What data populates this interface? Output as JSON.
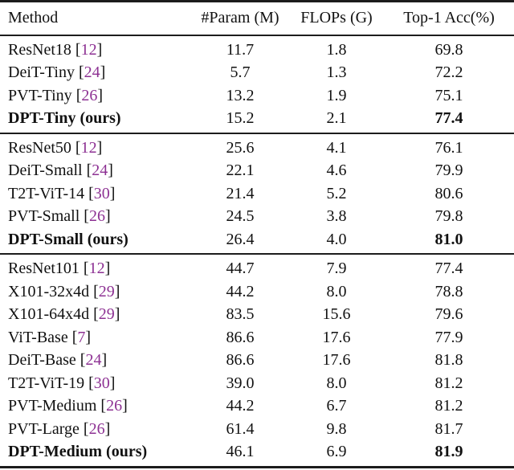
{
  "table": {
    "columns": [
      "Method",
      "#Param (M)",
      "FLOPs (G)",
      "Top-1 Acc(%)"
    ],
    "sections": [
      {
        "rows": [
          {
            "method": "ResNet18",
            "cite": "12",
            "param": "11.7",
            "flops": "1.8",
            "acc": "69.8",
            "bold": false
          },
          {
            "method": "DeiT-Tiny",
            "cite": "24",
            "param": "5.7",
            "flops": "1.3",
            "acc": "72.2",
            "bold": false
          },
          {
            "method": "PVT-Tiny",
            "cite": "26",
            "param": "13.2",
            "flops": "1.9",
            "acc": "75.1",
            "bold": false
          },
          {
            "method": "DPT-Tiny (ours)",
            "cite": null,
            "param": "15.2",
            "flops": "2.1",
            "acc": "77.4",
            "bold": true
          }
        ]
      },
      {
        "rows": [
          {
            "method": "ResNet50",
            "cite": "12",
            "param": "25.6",
            "flops": "4.1",
            "acc": "76.1",
            "bold": false
          },
          {
            "method": "DeiT-Small",
            "cite": "24",
            "param": "22.1",
            "flops": "4.6",
            "acc": "79.9",
            "bold": false
          },
          {
            "method": "T2T-ViT-14",
            "cite": "30",
            "param": "21.4",
            "flops": "5.2",
            "acc": "80.6",
            "bold": false
          },
          {
            "method": "PVT-Small",
            "cite": "26",
            "param": "24.5",
            "flops": "3.8",
            "acc": "79.8",
            "bold": false
          },
          {
            "method": "DPT-Small (ours)",
            "cite": null,
            "param": "26.4",
            "flops": "4.0",
            "acc": "81.0",
            "bold": true
          }
        ]
      },
      {
        "rows": [
          {
            "method": "ResNet101",
            "cite": "12",
            "param": "44.7",
            "flops": "7.9",
            "acc": "77.4",
            "bold": false
          },
          {
            "method": "X101-32x4d",
            "cite": "29",
            "param": "44.2",
            "flops": "8.0",
            "acc": "78.8",
            "bold": false
          },
          {
            "method": "X101-64x4d",
            "cite": "29",
            "param": "83.5",
            "flops": "15.6",
            "acc": "79.6",
            "bold": false
          },
          {
            "method": "ViT-Base",
            "cite": "7",
            "param": "86.6",
            "flops": "17.6",
            "acc": "77.9",
            "bold": false
          },
          {
            "method": "DeiT-Base",
            "cite": "24",
            "param": "86.6",
            "flops": "17.6",
            "acc": "81.8",
            "bold": false
          },
          {
            "method": "T2T-ViT-19",
            "cite": "30",
            "param": "39.0",
            "flops": "8.0",
            "acc": "81.2",
            "bold": false
          },
          {
            "method": "PVT-Medium",
            "cite": "26",
            "param": "44.2",
            "flops": "6.7",
            "acc": "81.2",
            "bold": false
          },
          {
            "method": "PVT-Large",
            "cite": "26",
            "param": "61.4",
            "flops": "9.8",
            "acc": "81.7",
            "bold": false
          },
          {
            "method": "DPT-Medium (ours)",
            "cite": null,
            "param": "46.1",
            "flops": "6.9",
            "acc": "81.9",
            "bold": true
          }
        ]
      }
    ]
  },
  "colors": {
    "citation": "#8d3193",
    "text": "#111111",
    "rule": "#1c1c1c",
    "background": "#ffffff"
  }
}
